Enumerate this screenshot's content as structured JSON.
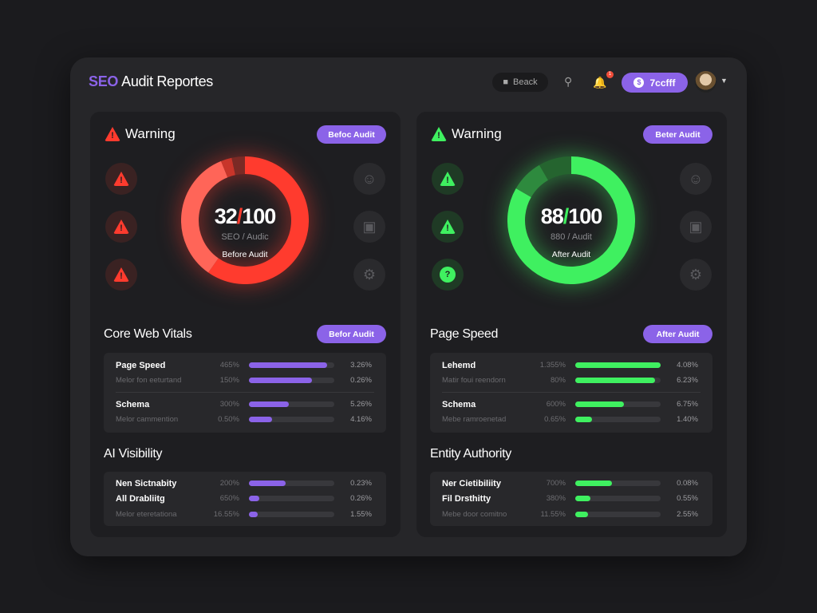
{
  "header": {
    "title_brand": "SEO",
    "title_rest": "Audit Reportes",
    "back_label": "Beack",
    "notification_count": "1",
    "account_label": "7ccfff"
  },
  "colors": {
    "accent": "#8b63e8",
    "bad": "#ff3b2e",
    "good": "#3ff060"
  },
  "panels": [
    {
      "warning": "Warning",
      "top_button": "Befoc Audit",
      "score": "32",
      "score_total": "100",
      "score_sub": "SEO / Audic",
      "score_label": "Before Audit",
      "score_value": 32,
      "side_icons": [
        "warning-icon",
        "warning-icon",
        "warning-icon"
      ],
      "section1": {
        "title": "Core Web Vitals",
        "button": "Befor Audit",
        "rows": [
          {
            "name": "Page Speed",
            "pct": "465%",
            "fill": 0.92,
            "value": "3.26%",
            "major": true
          },
          {
            "name": "Melor fon eeturtand",
            "pct": "150%",
            "fill": 0.74,
            "value": "0.26%",
            "major": false
          },
          {
            "name": "Schema",
            "pct": "300%",
            "fill": 0.47,
            "value": "5.26%",
            "major": true
          },
          {
            "name": "Melor cammention",
            "pct": "0.50%",
            "fill": 0.27,
            "value": "4.16%",
            "major": false
          }
        ]
      },
      "section2": {
        "title": "AI Visibility",
        "rows": [
          {
            "name": "Nen Sictnabity",
            "pct": "200%",
            "fill": 0.43,
            "value": "0.23%",
            "major": true
          },
          {
            "name": "All Drabliitg",
            "pct": "650%",
            "fill": 0.12,
            "value": "0.26%",
            "major": true
          },
          {
            "name": "Melor eteretationa",
            "pct": "16.55%",
            "fill": 0.1,
            "value": "1.55%",
            "major": false
          }
        ]
      }
    },
    {
      "warning": "Warning",
      "top_button": "Beter Audit",
      "score": "88",
      "score_total": "100",
      "score_sub": "880 / Audit",
      "score_label": "After Audit",
      "score_value": 88,
      "side_icons": [
        "warning-icon",
        "warning-icon",
        "question-icon"
      ],
      "section1": {
        "title": "Page Speed",
        "button": "After Audit",
        "rows": [
          {
            "name": "Lehemd",
            "pct": "1.355%",
            "fill": 1.0,
            "value": "4.08%",
            "major": true
          },
          {
            "name": "Matir foui reendorn",
            "pct": "80%",
            "fill": 0.93,
            "value": "6.23%",
            "major": false
          },
          {
            "name": "Schema",
            "pct": "600%",
            "fill": 0.57,
            "value": "6.75%",
            "major": true
          },
          {
            "name": "Mebe ramroenetad",
            "pct": "0.65%",
            "fill": 0.2,
            "value": "1.40%",
            "major": false
          }
        ]
      },
      "section2": {
        "title": "Entity Authority",
        "rows": [
          {
            "name": "Ner Cietibiliity",
            "pct": "700%",
            "fill": 0.43,
            "value": "0.08%",
            "major": true
          },
          {
            "name": "Fil Drsthitty",
            "pct": "380%",
            "fill": 0.18,
            "value": "0.55%",
            "major": true
          },
          {
            "name": "Mebe door comitno",
            "pct": "11.55%",
            "fill": 0.15,
            "value": "2.55%",
            "major": false
          }
        ]
      }
    }
  ]
}
